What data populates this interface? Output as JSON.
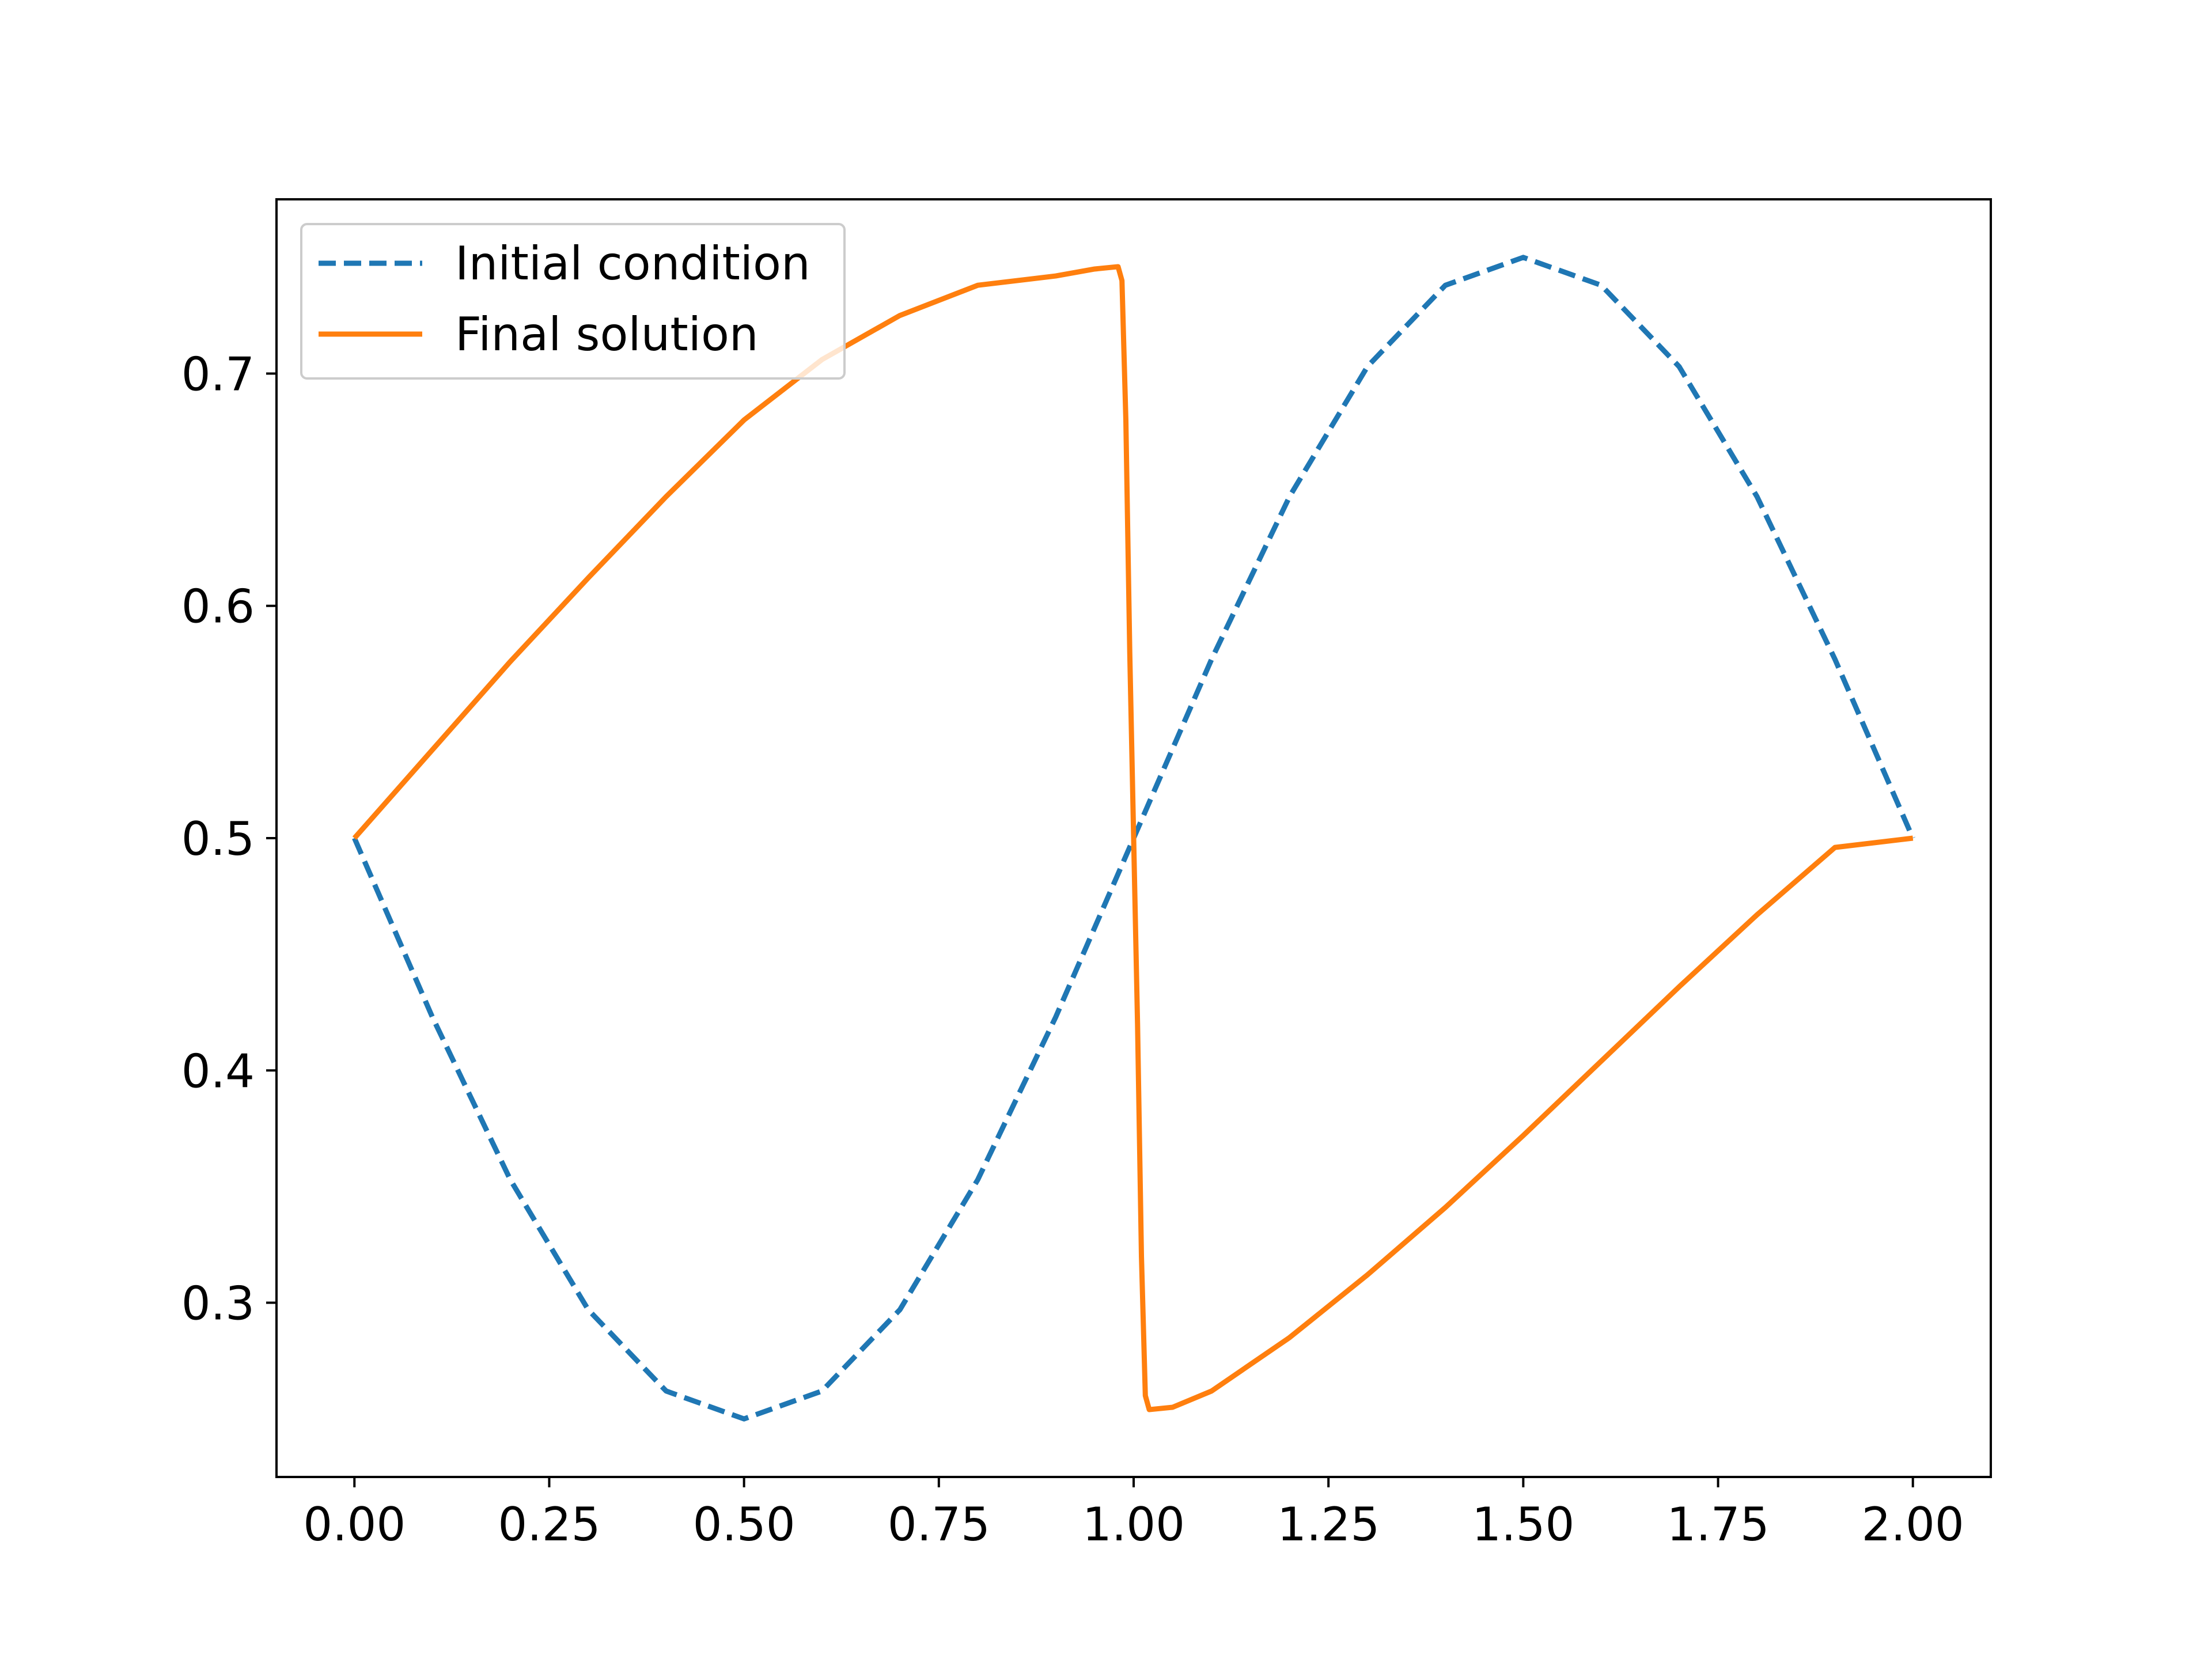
{
  "chart_data": {
    "type": "line",
    "title": "",
    "xlabel": "",
    "ylabel": "",
    "xlim": [
      -0.1,
      2.1
    ],
    "ylim": [
      0.225,
      0.775
    ],
    "x_ticks": [
      0.0,
      0.25,
      0.5,
      0.75,
      1.0,
      1.25,
      1.5,
      1.75,
      2.0
    ],
    "x_tick_labels": [
      "0.00",
      "0.25",
      "0.50",
      "0.75",
      "1.00",
      "1.25",
      "1.50",
      "1.75",
      "2.00"
    ],
    "y_ticks": [
      0.3,
      0.4,
      0.5,
      0.6,
      0.7
    ],
    "y_tick_labels": [
      "0.3",
      "0.4",
      "0.5",
      "0.6",
      "0.7"
    ],
    "grid": false,
    "legend_position": "upper left",
    "series": [
      {
        "name": "Initial condition",
        "color": "#1f77b4",
        "style": "dashed",
        "x": [
          0.0,
          0.1,
          0.2,
          0.3,
          0.4,
          0.5,
          0.6,
          0.7,
          0.8,
          0.9,
          1.0,
          1.1,
          1.2,
          1.3,
          1.4,
          1.5,
          1.6,
          1.7,
          1.8,
          1.9,
          2.0
        ],
        "y": [
          0.5,
          0.423,
          0.353,
          0.297,
          0.262,
          0.25,
          0.262,
          0.297,
          0.353,
          0.423,
          0.5,
          0.577,
          0.647,
          0.703,
          0.738,
          0.75,
          0.738,
          0.703,
          0.647,
          0.577,
          0.5
        ]
      },
      {
        "name": "Final solution",
        "color": "#ff7f0e",
        "style": "solid",
        "x": [
          0.0,
          0.1,
          0.2,
          0.3,
          0.4,
          0.5,
          0.6,
          0.7,
          0.8,
          0.9,
          0.95,
          0.98,
          0.985,
          0.99,
          0.995,
          1.0,
          1.005,
          1.01,
          1.015,
          1.02,
          1.05,
          1.1,
          1.2,
          1.3,
          1.4,
          1.5,
          1.6,
          1.7,
          1.8,
          1.9,
          2.0
        ],
        "y": [
          0.5,
          0.538,
          0.576,
          0.612,
          0.647,
          0.68,
          0.706,
          0.725,
          0.738,
          0.742,
          0.745,
          0.746,
          0.74,
          0.68,
          0.58,
          0.5,
          0.42,
          0.32,
          0.26,
          0.254,
          0.255,
          0.262,
          0.285,
          0.312,
          0.341,
          0.372,
          0.404,
          0.436,
          0.467,
          0.496,
          0.5
        ]
      }
    ]
  }
}
